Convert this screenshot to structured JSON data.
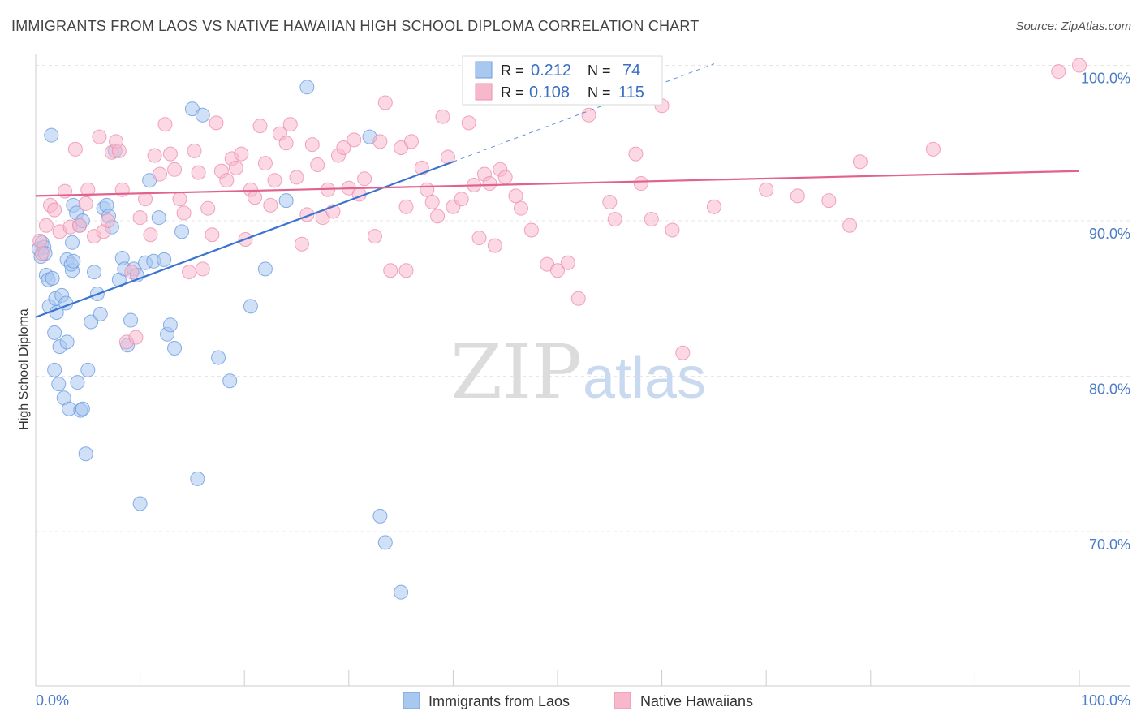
{
  "header": {
    "title": "IMMIGRANTS FROM LAOS VS NATIVE HAWAIIAN HIGH SCHOOL DIPLOMA CORRELATION CHART",
    "source": "Source: ZipAtlas.com"
  },
  "watermark": {
    "part1": "ZIP",
    "part2": "atlas"
  },
  "legend_top": {
    "rows": [
      {
        "r_label": "R =",
        "r_value": "0.212",
        "n_label": "N =",
        "n_value": "74",
        "color": "#a9c8f0"
      },
      {
        "r_label": "R =",
        "r_value": "0.108",
        "n_label": "N =",
        "n_value": "115",
        "color": "#f7b8cc"
      }
    ]
  },
  "chart_data": {
    "type": "scatter",
    "title": "IMMIGRANTS FROM LAOS VS NATIVE HAWAIIAN HIGH SCHOOL DIPLOMA CORRELATION CHART",
    "xlabel": "",
    "ylabel": "High School Diploma",
    "xlim": [
      0,
      100
    ],
    "ylim": [
      62,
      101
    ],
    "x_tick_labels": [
      "0.0%",
      "100.0%"
    ],
    "y_ticks": [
      70,
      80,
      90,
      100
    ],
    "y_tick_labels": [
      "70.0%",
      "80.0%",
      "90.0%",
      "100.0%"
    ],
    "grid": true,
    "legend_position": "bottom-center",
    "series": [
      {
        "name": "Immigrants from Laos",
        "color": "#a9c8f0",
        "stroke": "#6a9be0",
        "trend": {
          "x0": 0,
          "y0": 83.8,
          "x1": 40,
          "y1": 93.8,
          "dash_to_x": 65,
          "dash_to_y": 100.1,
          "color": "#3a74d0"
        },
        "points": [
          [
            0.3,
            88.2
          ],
          [
            0.5,
            87.7
          ],
          [
            0.6,
            88.6
          ],
          [
            0.8,
            88.3
          ],
          [
            0.9,
            87.9
          ],
          [
            1.0,
            86.5
          ],
          [
            1.2,
            86.2
          ],
          [
            1.3,
            84.5
          ],
          [
            1.6,
            86.3
          ],
          [
            1.8,
            80.4
          ],
          [
            1.5,
            95.5
          ],
          [
            1.8,
            82.8
          ],
          [
            1.9,
            85.0
          ],
          [
            2.0,
            84.1
          ],
          [
            2.2,
            79.5
          ],
          [
            2.3,
            81.9
          ],
          [
            2.5,
            85.2
          ],
          [
            2.7,
            78.6
          ],
          [
            3.0,
            82.2
          ],
          [
            3.2,
            77.9
          ],
          [
            3.0,
            87.5
          ],
          [
            3.5,
            88.6
          ],
          [
            3.6,
            91.0
          ],
          [
            3.9,
            90.5
          ],
          [
            4.2,
            89.7
          ],
          [
            4.5,
            90.0
          ],
          [
            3.5,
            86.8
          ],
          [
            3.4,
            87.2
          ],
          [
            2.9,
            84.7
          ],
          [
            3.6,
            87.4
          ],
          [
            4.0,
            79.6
          ],
          [
            4.3,
            77.8
          ],
          [
            4.5,
            77.9
          ],
          [
            4.8,
            75.0
          ],
          [
            5.0,
            80.4
          ],
          [
            5.3,
            83.5
          ],
          [
            5.6,
            86.7
          ],
          [
            5.9,
            85.3
          ],
          [
            6.2,
            84.0
          ],
          [
            6.5,
            90.8
          ],
          [
            6.8,
            91.0
          ],
          [
            7.0,
            90.3
          ],
          [
            7.3,
            89.6
          ],
          [
            7.6,
            94.5
          ],
          [
            8.0,
            86.2
          ],
          [
            8.3,
            87.6
          ],
          [
            8.5,
            86.9
          ],
          [
            8.8,
            82.0
          ],
          [
            9.1,
            83.6
          ],
          [
            9.4,
            86.9
          ],
          [
            9.7,
            86.5
          ],
          [
            10.0,
            71.8
          ],
          [
            10.5,
            87.3
          ],
          [
            10.9,
            92.6
          ],
          [
            11.3,
            87.4
          ],
          [
            11.8,
            90.2
          ],
          [
            12.3,
            87.5
          ],
          [
            12.6,
            82.7
          ],
          [
            12.9,
            83.3
          ],
          [
            13.3,
            81.8
          ],
          [
            14.0,
            89.3
          ],
          [
            15.0,
            97.2
          ],
          [
            15.5,
            73.4
          ],
          [
            16.0,
            96.8
          ],
          [
            17.5,
            81.2
          ],
          [
            18.6,
            79.7
          ],
          [
            20.6,
            84.5
          ],
          [
            22.0,
            86.9
          ],
          [
            24.0,
            91.3
          ],
          [
            26.0,
            98.6
          ],
          [
            32.0,
            95.4
          ],
          [
            33.0,
            71.0
          ],
          [
            33.5,
            69.3
          ],
          [
            35.0,
            66.1
          ]
        ]
      },
      {
        "name": "Native Hawaiians",
        "color": "#f7b8cc",
        "stroke": "#ee8fae",
        "trend": {
          "x0": 0,
          "y0": 91.6,
          "x1": 100,
          "y1": 93.2,
          "color": "#e0628f"
        },
        "points": [
          [
            0.4,
            88.7
          ],
          [
            0.6,
            87.9
          ],
          [
            1.0,
            89.7
          ],
          [
            1.4,
            91.0
          ],
          [
            1.8,
            90.7
          ],
          [
            2.3,
            89.3
          ],
          [
            2.8,
            91.9
          ],
          [
            3.3,
            89.6
          ],
          [
            3.8,
            94.6
          ],
          [
            4.2,
            89.7
          ],
          [
            4.8,
            91.1
          ],
          [
            5.0,
            92.0
          ],
          [
            5.6,
            89.0
          ],
          [
            6.1,
            95.4
          ],
          [
            6.5,
            89.3
          ],
          [
            6.9,
            90.0
          ],
          [
            7.3,
            94.4
          ],
          [
            7.7,
            95.1
          ],
          [
            8.0,
            94.5
          ],
          [
            8.3,
            92.0
          ],
          [
            8.7,
            82.2
          ],
          [
            9.2,
            86.7
          ],
          [
            9.6,
            82.5
          ],
          [
            10.0,
            90.2
          ],
          [
            10.5,
            91.4
          ],
          [
            11.0,
            89.1
          ],
          [
            11.4,
            94.2
          ],
          [
            11.9,
            93.0
          ],
          [
            12.4,
            96.2
          ],
          [
            12.9,
            94.3
          ],
          [
            13.3,
            93.3
          ],
          [
            13.8,
            91.4
          ],
          [
            14.2,
            90.5
          ],
          [
            14.7,
            86.7
          ],
          [
            15.2,
            94.5
          ],
          [
            15.6,
            93.1
          ],
          [
            16.0,
            86.9
          ],
          [
            16.5,
            90.8
          ],
          [
            16.9,
            89.1
          ],
          [
            17.3,
            96.3
          ],
          [
            17.8,
            93.2
          ],
          [
            18.3,
            92.6
          ],
          [
            18.8,
            94.0
          ],
          [
            19.2,
            93.4
          ],
          [
            19.7,
            94.3
          ],
          [
            20.1,
            88.8
          ],
          [
            20.6,
            92.0
          ],
          [
            21.0,
            91.5
          ],
          [
            21.5,
            96.1
          ],
          [
            22.0,
            93.7
          ],
          [
            22.5,
            91.0
          ],
          [
            22.9,
            92.6
          ],
          [
            23.4,
            95.6
          ],
          [
            24.0,
            95.0
          ],
          [
            24.4,
            96.2
          ],
          [
            25.0,
            92.8
          ],
          [
            25.5,
            88.5
          ],
          [
            26.0,
            90.4
          ],
          [
            26.5,
            94.9
          ],
          [
            27.0,
            93.6
          ],
          [
            27.5,
            90.2
          ],
          [
            28.0,
            92.0
          ],
          [
            28.5,
            90.6
          ],
          [
            29.0,
            94.2
          ],
          [
            29.5,
            94.7
          ],
          [
            30.0,
            92.1
          ],
          [
            30.5,
            95.2
          ],
          [
            31.0,
            91.7
          ],
          [
            31.5,
            92.7
          ],
          [
            32.5,
            89.0
          ],
          [
            33.0,
            95.1
          ],
          [
            33.5,
            97.6
          ],
          [
            34.0,
            86.8
          ],
          [
            35.0,
            94.7
          ],
          [
            35.5,
            90.9
          ],
          [
            36.0,
            95.1
          ],
          [
            37.0,
            93.4
          ],
          [
            37.5,
            92.0
          ],
          [
            38.0,
            91.2
          ],
          [
            38.5,
            90.3
          ],
          [
            39.0,
            96.7
          ],
          [
            39.5,
            94.1
          ],
          [
            40.0,
            90.9
          ],
          [
            40.8,
            91.4
          ],
          [
            41.5,
            96.3
          ],
          [
            42.0,
            92.3
          ],
          [
            42.5,
            88.9
          ],
          [
            43.0,
            93.0
          ],
          [
            43.5,
            92.4
          ],
          [
            44.0,
            88.4
          ],
          [
            44.5,
            93.3
          ],
          [
            45.0,
            92.8
          ],
          [
            46.0,
            91.6
          ],
          [
            46.5,
            90.8
          ],
          [
            47.5,
            89.4
          ],
          [
            49.0,
            87.2
          ],
          [
            50.0,
            86.8
          ],
          [
            51.0,
            87.3
          ],
          [
            52.0,
            85.0
          ],
          [
            53.0,
            96.8
          ],
          [
            54.0,
            98.8
          ],
          [
            55.0,
            91.2
          ],
          [
            55.5,
            90.1
          ],
          [
            56.0,
            100.0
          ],
          [
            57.5,
            94.3
          ],
          [
            58.0,
            92.4
          ],
          [
            59.0,
            90.1
          ],
          [
            60.0,
            97.4
          ],
          [
            61.0,
            89.4
          ],
          [
            62.0,
            81.5
          ],
          [
            65.0,
            90.9
          ],
          [
            70.0,
            92.0
          ],
          [
            73.0,
            91.6
          ],
          [
            76.0,
            91.3
          ],
          [
            78.0,
            89.7
          ],
          [
            79.0,
            93.8
          ],
          [
            86.0,
            94.6
          ],
          [
            100.0,
            100.0
          ],
          [
            98.0,
            99.6
          ],
          [
            35.5,
            86.8
          ]
        ]
      }
    ]
  },
  "legend_bottom": {
    "items": [
      {
        "label": "Immigrants from Laos",
        "color": "#a9c8f0"
      },
      {
        "label": "Native Hawaiians",
        "color": "#f7b8cc"
      }
    ]
  }
}
